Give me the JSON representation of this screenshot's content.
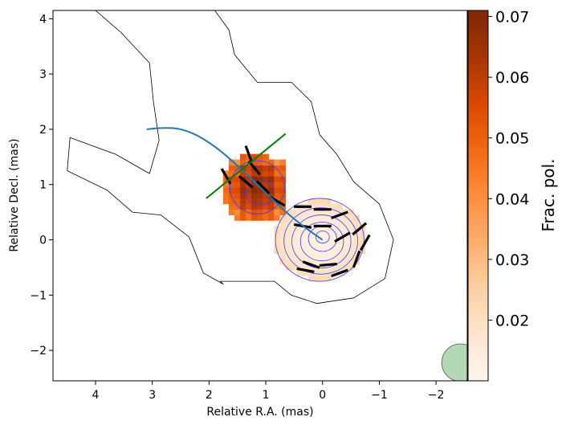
{
  "chart_data": {
    "type": "heatmap",
    "title": "",
    "xlabel": "Relative R.A. (mas)",
    "ylabel": "Relative Decl. (mas)",
    "xlim": [
      4.75,
      -2.55
    ],
    "ylim": [
      -2.55,
      4.15
    ],
    "x_ticks": [
      4,
      3,
      2,
      1,
      0,
      -1,
      -2
    ],
    "y_ticks": [
      -2,
      -1,
      0,
      1,
      2,
      3,
      4
    ],
    "x_tick_labels": [
      "4",
      "3",
      "2",
      "1",
      "0",
      "−1",
      "−2"
    ],
    "y_tick_labels": [
      "−2",
      "−1",
      "0",
      "1",
      "2",
      "3",
      "4"
    ],
    "grid": false,
    "colorbar": {
      "label": "Frac. pol.",
      "cmap": "Oranges",
      "range": [
        0.01,
        0.071
      ],
      "ticks": [
        0.02,
        0.03,
        0.04,
        0.05,
        0.06,
        0.07
      ],
      "tick_labels": [
        "0.02",
        "0.03",
        "0.04",
        "0.05",
        "0.06",
        "0.07"
      ]
    },
    "colormap_stops": [
      "#fff5eb",
      "#fee6ce",
      "#fdd0a2",
      "#fdae6b",
      "#fd8d3c",
      "#f16913",
      "#d94801",
      "#a63603",
      "#7f2704"
    ],
    "regions": [
      {
        "name": "jet-knot",
        "cx": 1.15,
        "cy": 0.95,
        "half_w": 0.55,
        "half_h": 0.6,
        "peak": 0.066,
        "edge": 0.045,
        "gap_x": 1.15,
        "gap_y": 0.3,
        "cutoff": 1.0
      },
      {
        "name": "core",
        "cx": 0.05,
        "cy": 0.0,
        "half_w": 0.8,
        "half_h": 0.72,
        "peak": 0.012,
        "edge": 0.022,
        "cutoff": 1.0
      }
    ],
    "total_intensity_outer_contour": [
      [
        4.0,
        4.15
      ],
      [
        3.55,
        3.75
      ],
      [
        3.05,
        3.2
      ],
      [
        2.98,
        2.5
      ],
      [
        2.88,
        1.8
      ],
      [
        3.05,
        1.2
      ],
      [
        3.65,
        1.55
      ],
      [
        4.45,
        1.85
      ],
      [
        4.5,
        1.25
      ],
      [
        3.8,
        0.9
      ],
      [
        3.35,
        0.5
      ],
      [
        2.85,
        0.45
      ],
      [
        2.35,
        0.05
      ],
      [
        2.1,
        -0.6
      ],
      [
        1.75,
        -0.8
      ],
      [
        1.8,
        -0.75
      ],
      [
        1.3,
        -0.75
      ],
      [
        0.85,
        -0.75
      ],
      [
        0.55,
        -1.0
      ],
      [
        0.1,
        -1.15
      ],
      [
        -0.55,
        -1.05
      ],
      [
        -1.1,
        -0.7
      ],
      [
        -1.25,
        0.0
      ],
      [
        -1.0,
        0.65
      ],
      [
        -0.55,
        1.05
      ],
      [
        -0.25,
        1.55
      ],
      [
        0.05,
        1.9
      ],
      [
        0.2,
        2.5
      ],
      [
        0.55,
        2.85
      ],
      [
        1.15,
        2.85
      ],
      [
        1.55,
        3.35
      ],
      [
        1.65,
        3.8
      ],
      [
        1.9,
        4.15
      ]
    ],
    "core_contours": [
      {
        "cx": 0.05,
        "cy": 0.0,
        "rx": 0.78,
        "ry": 0.75
      },
      {
        "cx": 0.03,
        "cy": -0.02,
        "rx": 0.65,
        "ry": 0.6
      },
      {
        "cx": 0.02,
        "cy": -0.03,
        "rx": 0.52,
        "ry": 0.48
      },
      {
        "cx": 0.01,
        "cy": -0.03,
        "rx": 0.38,
        "ry": 0.35
      },
      {
        "cx": 0.0,
        "cy": 0.02,
        "rx": 0.25,
        "ry": 0.23
      },
      {
        "cx": 0.0,
        "cy": 0.05,
        "rx": 0.12,
        "ry": 0.11
      }
    ],
    "knot_contours": [
      {
        "cx": 1.15,
        "cy": 0.95,
        "rx": 0.48,
        "ry": 0.48
      },
      {
        "cx": 1.1,
        "cy": 0.85,
        "rx": 0.25,
        "ry": 0.22
      }
    ],
    "jet_ridge_line": [
      [
        3.1,
        2.0
      ],
      [
        2.7,
        2.05
      ],
      [
        2.3,
        1.95
      ],
      [
        1.9,
        1.7
      ],
      [
        1.5,
        1.35
      ],
      [
        1.1,
        0.95
      ],
      [
        0.7,
        0.55
      ],
      [
        0.35,
        0.25
      ],
      [
        0.0,
        0.0
      ]
    ],
    "cut_line": [
      [
        2.05,
        0.75
      ],
      [
        0.65,
        1.92
      ]
    ],
    "evpa_vectors": [
      {
        "x": 1.3,
        "y": 1.55,
        "angle": 70
      },
      {
        "x": 1.2,
        "y": 1.3,
        "angle": 50
      },
      {
        "x": 1.7,
        "y": 1.15,
        "angle": 60
      },
      {
        "x": 1.35,
        "y": 1.05,
        "angle": 40
      },
      {
        "x": 1.05,
        "y": 0.95,
        "angle": 45
      },
      {
        "x": 0.8,
        "y": 0.7,
        "angle": 30
      },
      {
        "x": 0.35,
        "y": 0.6,
        "angle": 0
      },
      {
        "x": 0.0,
        "y": 0.55,
        "angle": 0
      },
      {
        "x": -0.3,
        "y": 0.45,
        "angle": -20
      },
      {
        "x": -0.65,
        "y": 0.2,
        "angle": -40
      },
      {
        "x": -0.75,
        "y": -0.05,
        "angle": -60
      },
      {
        "x": -0.6,
        "y": -0.35,
        "angle": -70
      },
      {
        "x": 0.35,
        "y": 0.25,
        "angle": 10
      },
      {
        "x": 0.0,
        "y": 0.25,
        "angle": 0
      },
      {
        "x": -0.35,
        "y": 0.05,
        "angle": -30
      },
      {
        "x": 0.2,
        "y": -0.45,
        "angle": 20
      },
      {
        "x": -0.1,
        "y": -0.45,
        "angle": -5
      },
      {
        "x": 0.3,
        "y": -0.55,
        "angle": 10
      },
      {
        "x": -0.3,
        "y": -0.6,
        "angle": -20
      }
    ],
    "beam": {
      "x": -2.43,
      "y": -2.22,
      "r": 0.33,
      "color": "#6ab26a"
    },
    "colors": {
      "ridge": "#1f77b4",
      "cut": "#008000",
      "intensity_outer": "#000000",
      "core_contours": "#3a3aff",
      "evpa": "#000000"
    }
  }
}
